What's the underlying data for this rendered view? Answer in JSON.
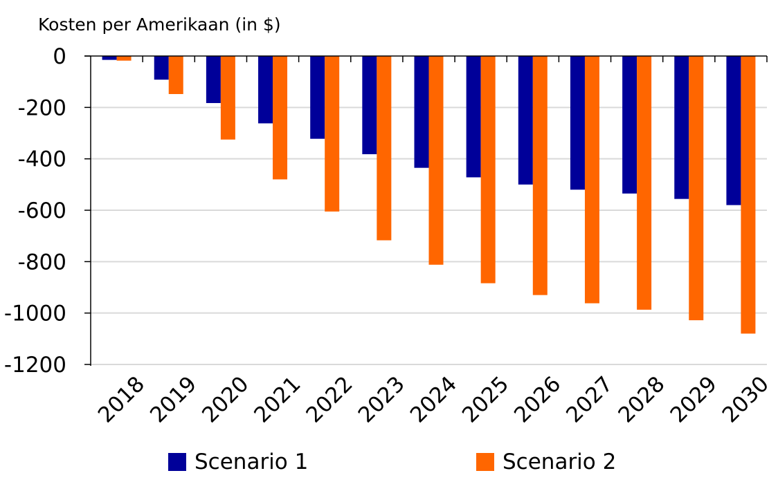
{
  "chart_data": {
    "type": "bar",
    "title": "Kosten per Amerikaan (in $)",
    "categories": [
      "2018",
      "2019",
      "2020",
      "2021",
      "2022",
      "2023",
      "2024",
      "2025",
      "2026",
      "2027",
      "2028",
      "2029",
      "2030"
    ],
    "series": [
      {
        "name": "Scenario 1",
        "color": "#000099",
        "values": [
          -15,
          -92,
          -183,
          -262,
          -322,
          -382,
          -435,
          -472,
          -500,
          -520,
          -535,
          -556,
          -580
        ]
      },
      {
        "name": "Scenario 2",
        "color": "#FF6600",
        "values": [
          -18,
          -148,
          -325,
          -480,
          -605,
          -717,
          -812,
          -884,
          -930,
          -962,
          -987,
          -1028,
          -1080
        ]
      }
    ],
    "ylim": [
      -1200,
      0
    ],
    "yticks": [
      0,
      -200,
      -400,
      -600,
      -800,
      -1000,
      -1200
    ],
    "ytick_labels": [
      "0",
      "-200",
      "-400",
      "-600",
      "-800",
      "-1000",
      "-1200"
    ],
    "grid": true,
    "legend_position": "bottom"
  }
}
